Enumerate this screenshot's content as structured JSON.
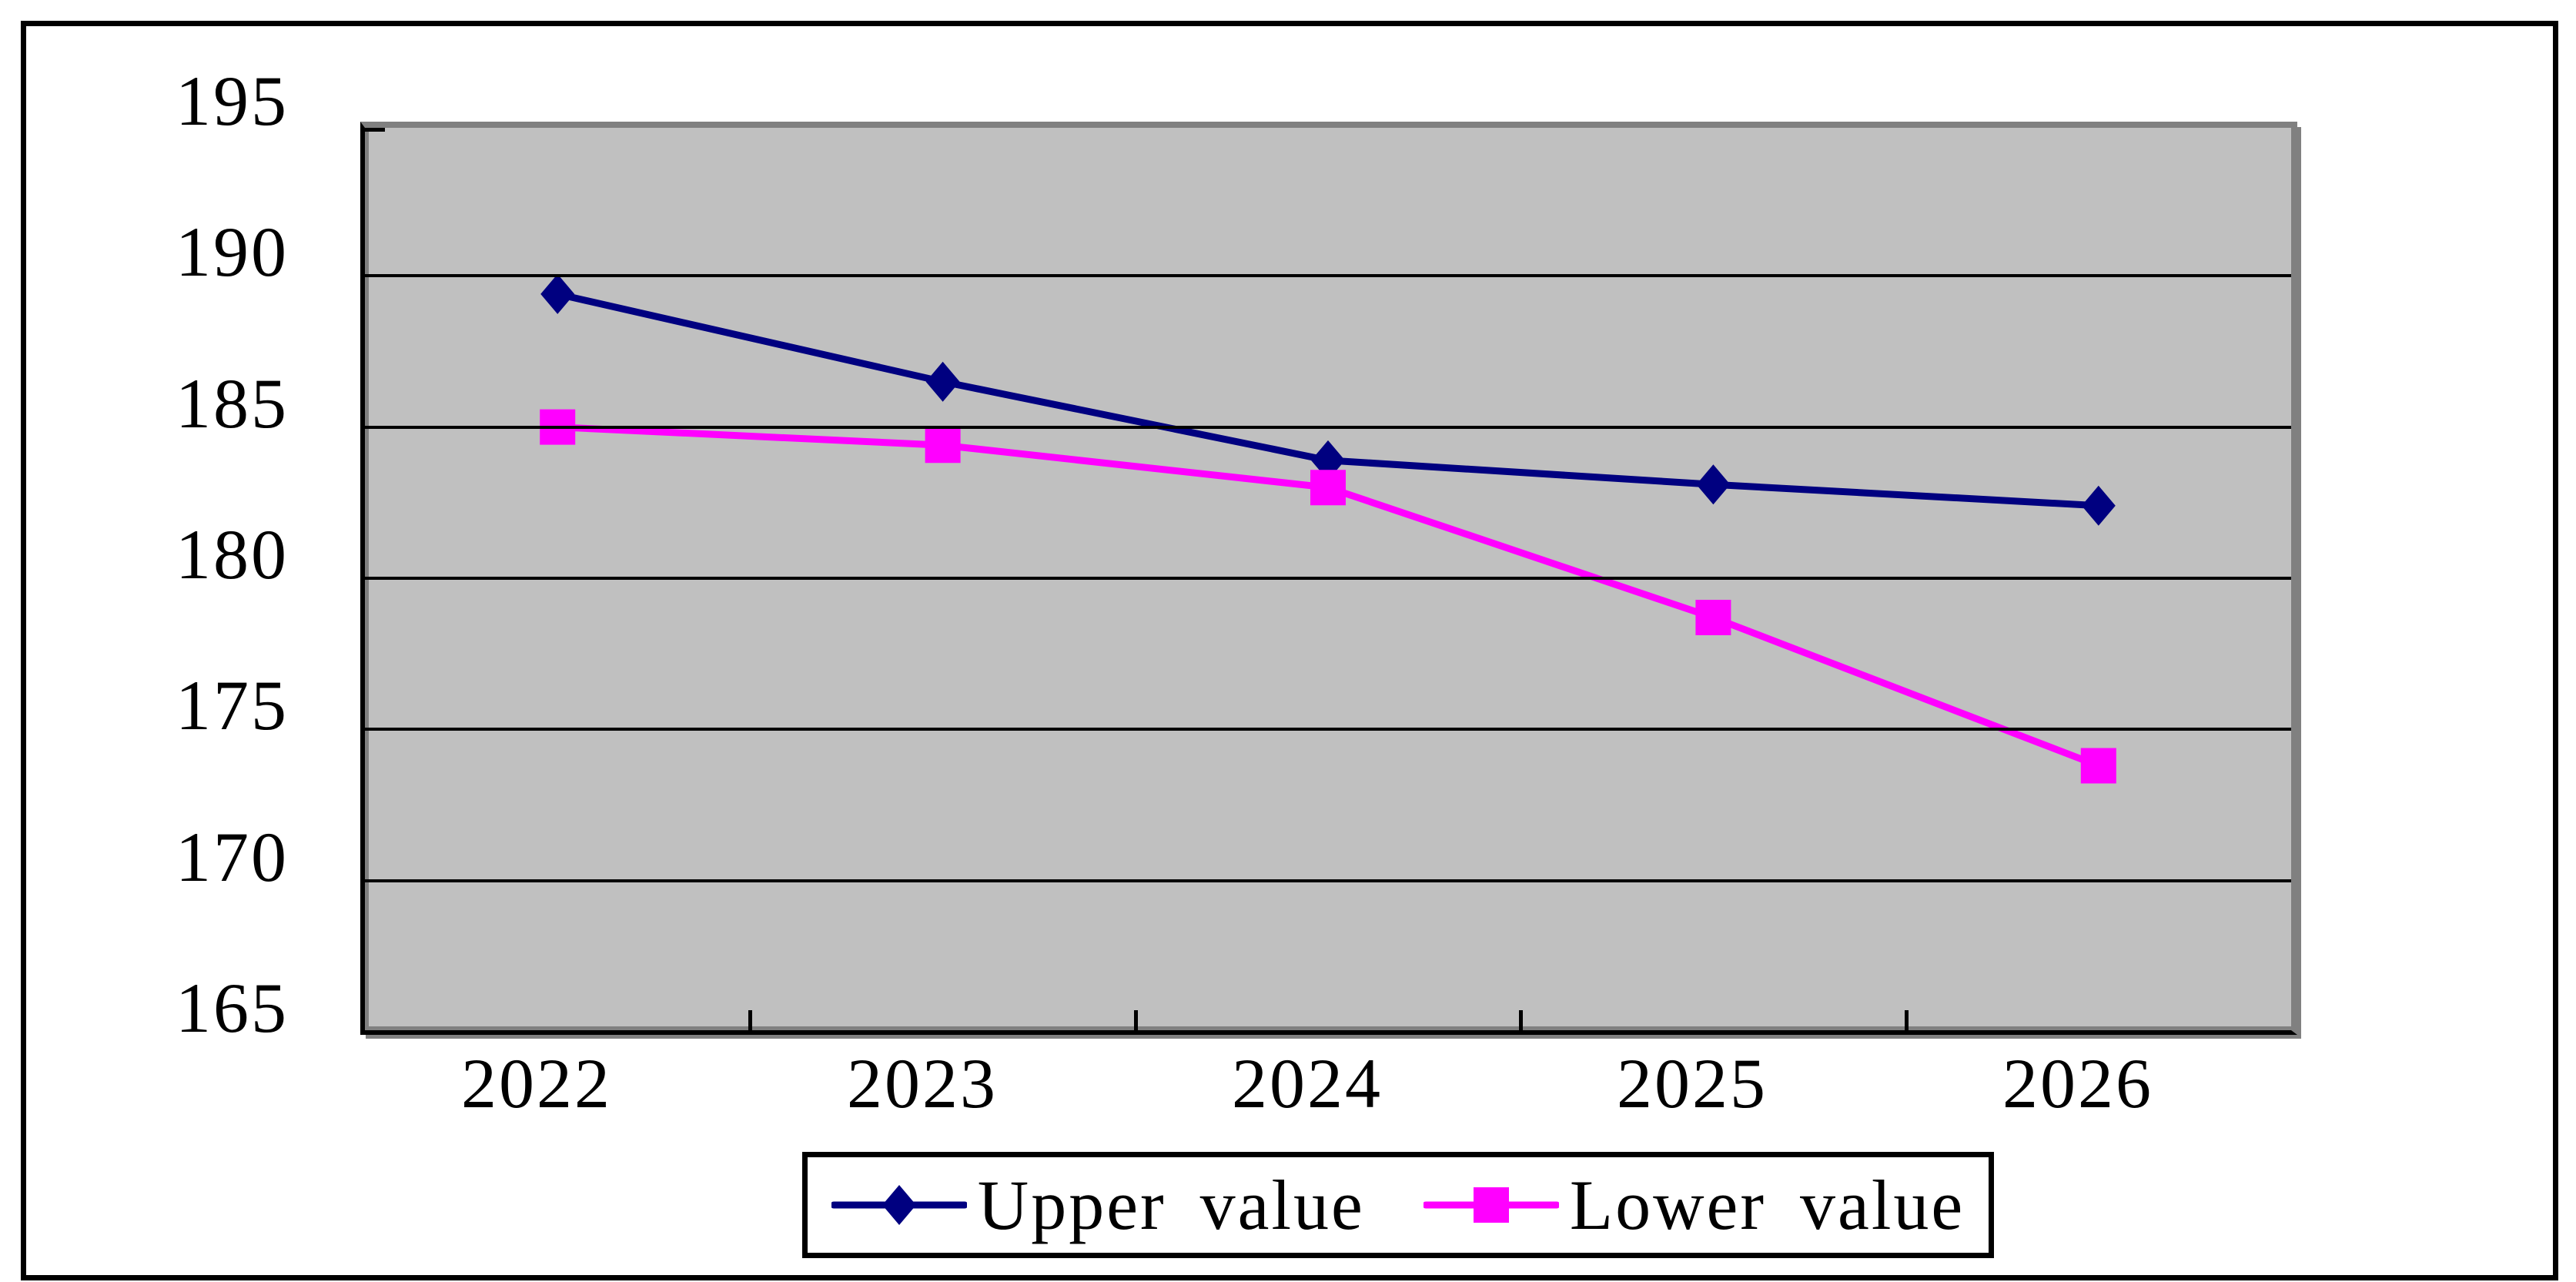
{
  "chart_data": {
    "type": "line",
    "categories": [
      "2022",
      "2023",
      "2024",
      "2025",
      "2026"
    ],
    "series": [
      {
        "name": "Upper value",
        "color": "#000080",
        "marker": "diamond",
        "values": [
          189.4,
          186.5,
          183.9,
          183.1,
          182.4
        ]
      },
      {
        "name": "Lower value",
        "color": "#FF00FF",
        "marker": "square",
        "values": [
          185.0,
          184.4,
          183.0,
          178.7,
          173.8
        ]
      }
    ],
    "title": "",
    "xlabel": "",
    "ylabel": "",
    "ylim": [
      165,
      195
    ],
    "yticks": [
      195,
      190,
      185,
      180,
      175,
      170,
      165
    ],
    "gridline_values": [
      190,
      185,
      180,
      175,
      170
    ],
    "grid": true,
    "legend_position": "bottom",
    "colors": {
      "plot_background": "#C0C0C0",
      "gridline": "#000000",
      "axis": "#000000",
      "plot_shadow": "#808080",
      "outer_border": "#000000",
      "legend_border": "#000000",
      "legend_background": "#FFFFFF",
      "page_background": "#FFFFFF",
      "text": "#000000"
    }
  }
}
